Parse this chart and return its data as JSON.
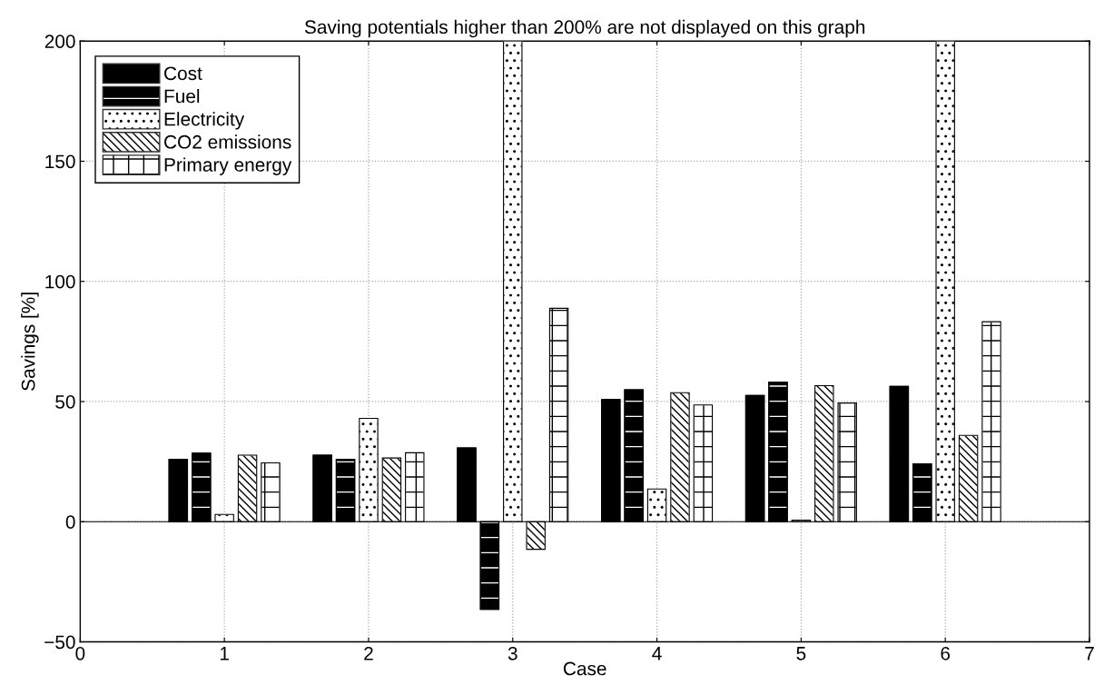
{
  "chart_data": {
    "type": "bar",
    "title": "Saving potentials higher than 200% are not displayed on this graph",
    "xlabel": "Case",
    "ylabel": "Savings [%]",
    "x": [
      1,
      2,
      3,
      4,
      5,
      6
    ],
    "series": [
      {
        "name": "Cost",
        "color": "#000000",
        "values": [
          26,
          27.7,
          30.7,
          50.8,
          52.5,
          56.3
        ]
      },
      {
        "name": "Fuel",
        "color": "#000000",
        "values": [
          28.5,
          26,
          -36.5,
          54.9,
          58.1,
          24.1
        ]
      },
      {
        "name": "Electricity",
        "color": "#ffffff",
        "values": [
          3,
          43,
          200,
          13.6,
          0.6,
          200
        ]
      },
      {
        "name": "CO2 emissions",
        "color": "#ffffff",
        "values": [
          27.7,
          26.5,
          -11.5,
          53.7,
          56.6,
          35.9
        ]
      },
      {
        "name": "Primary energy",
        "color": "#ffffff",
        "values": [
          24.5,
          28.7,
          88.8,
          48.6,
          49.4,
          83.2
        ]
      }
    ],
    "xlim": [
      0,
      7
    ],
    "xticks": [
      0,
      1,
      2,
      3,
      4,
      5,
      6,
      7
    ],
    "ylim": [
      -50,
      200
    ],
    "yticks": [
      {
        "value": -50,
        "label": "−50"
      },
      0,
      50,
      100,
      150,
      200
    ],
    "ref_lines": [
      {
        "axis": "y",
        "value": 0,
        "color": "#000000"
      }
    ],
    "grid": true,
    "legend": "top left"
  }
}
